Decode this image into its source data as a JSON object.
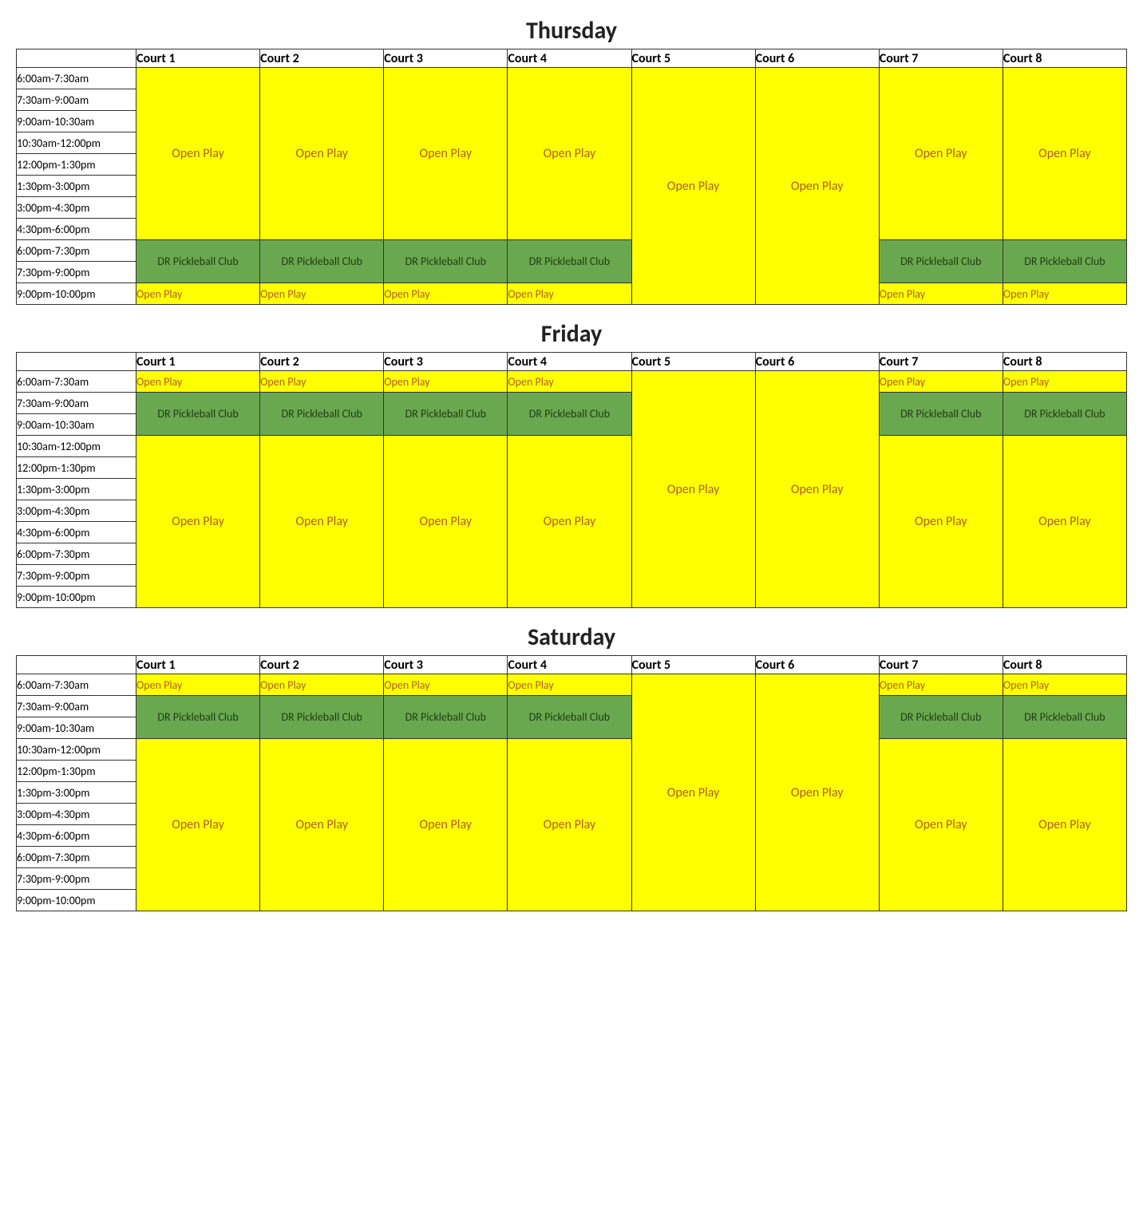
{
  "labels": {
    "open_play": "Open Play",
    "club": "DR Pickleball Club"
  },
  "colors": {
    "open_play_bg": "#ffff00",
    "open_play_text": "#b06020",
    "club_bg": "#6aa84f",
    "club_text": "#1f3b12",
    "border": "#333333",
    "background": "#ffffff"
  },
  "columns": [
    "Court 1",
    "Court 2",
    "Court 3",
    "Court 4",
    "Court 5",
    "Court 6",
    "Court 7",
    "Court 8"
  ],
  "time_slots": [
    "6:00am-7:30am",
    "7:30am-9:00am",
    "9:00am-10:30am",
    "10:30am-12:00pm",
    "12:00pm-1:30pm",
    "1:30pm-3:00pm",
    "3:00pm-4:30pm",
    "4:30pm-6:00pm",
    "6:00pm-7:30pm",
    "7:30pm-9:00pm",
    "9:00pm-10:00pm"
  ],
  "days": {
    "thursday": {
      "title": "Thursday"
    },
    "friday": {
      "title": "Friday"
    },
    "saturday": {
      "title": "Saturday"
    }
  }
}
